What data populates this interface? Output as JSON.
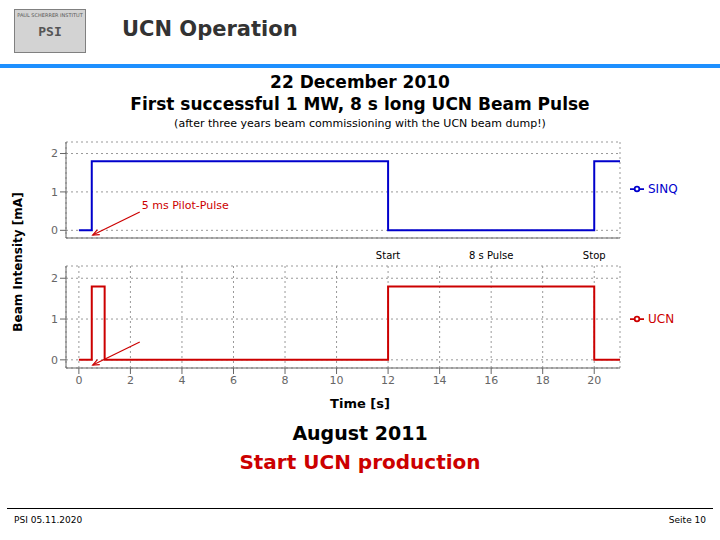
{
  "header": {
    "logo": "PSI",
    "logo_caption": "PAUL SCHERRER INSTITUT",
    "title": "UCN Operation"
  },
  "separator_color": "#1e90ff",
  "date": "22 December 2010",
  "title": "First successful 1 MW, 8 s long UCN Beam Pulse",
  "subtitle": "(after three years beam commissioning with the UCN beam dump!)",
  "ylabel": "Beam Intensity [mA]",
  "bottom_texts": [
    {
      "text": "August 2011"
    },
    {
      "text": "Start UCN production",
      "color": "#cc0000"
    }
  ],
  "footer": {
    "left": "PSI 05.11.2020",
    "right": "Seite 10"
  },
  "chart_data": [
    {
      "type": "line",
      "line_style": "step",
      "x": [
        0,
        0.5,
        0.5,
        12.0,
        12.0,
        20.0,
        20.0,
        21.0
      ],
      "series": [
        {
          "name": "SINQ",
          "color": "#0000cc",
          "values": [
            0,
            0,
            1.8,
            1.8,
            0,
            0,
            1.8,
            1.8
          ]
        }
      ],
      "xlim": [
        -0.5,
        21
      ],
      "xticks": [
        0,
        2,
        4,
        6,
        8,
        10,
        12,
        14,
        16,
        18,
        20
      ],
      "ylim": [
        -0.2,
        2.3
      ],
      "yticks": [
        0,
        1,
        2
      ],
      "grid": true,
      "legend": "right",
      "tick_labels": "y",
      "annotations": [
        {
          "text": "5 ms Pilot-Pulse",
          "x": 0.5,
          "color": "#cc0000"
        }
      ]
    },
    {
      "type": "line",
      "line_style": "step",
      "x": [
        0,
        0.5,
        0.5,
        1.0,
        1.0,
        12.0,
        12.0,
        20.0,
        20.0,
        21.0
      ],
      "series": [
        {
          "name": "UCN",
          "color": "#cc0000",
          "values": [
            0,
            0,
            1.8,
            1.8,
            0,
            0,
            1.8,
            1.8,
            0,
            0
          ]
        }
      ],
      "xlim": [
        -0.5,
        21
      ],
      "xticks": [
        0,
        2,
        4,
        6,
        8,
        10,
        12,
        14,
        16,
        18,
        20
      ],
      "ylim": [
        -0.2,
        2.3
      ],
      "yticks": [
        0,
        1,
        2
      ],
      "grid": true,
      "legend": "right",
      "xlabel": "Time [s]",
      "annotations": [
        {
          "x": 0.5,
          "color": "#cc0000"
        }
      ],
      "marks": [
        {
          "x": 12.0,
          "label": "Start"
        },
        {
          "x": 16.0,
          "label": "8 s Pulse"
        },
        {
          "x": 20.0,
          "label": "Stop"
        }
      ]
    }
  ]
}
